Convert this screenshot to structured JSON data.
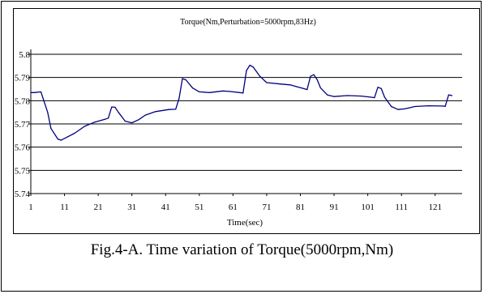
{
  "caption": "Fig.4-A. Time variation of Torque(5000rpm,Nm)",
  "chart_data": {
    "type": "line",
    "title": "Torque(Nm,Perturbation=5000rpm,83Hz)",
    "xlabel": "Time(sec)",
    "ylabel": "",
    "x_ticks": [
      1,
      11,
      21,
      31,
      41,
      51,
      61,
      71,
      81,
      91,
      101,
      111,
      121
    ],
    "y_ticks": [
      5.74,
      5.75,
      5.76,
      5.77,
      5.78,
      5.79,
      5.8
    ],
    "xlim": [
      1,
      129
    ],
    "ylim": [
      5.74,
      5.8
    ],
    "grid": "horizontal",
    "line_color": "#000080",
    "series": [
      {
        "x": [
          1,
          2,
          4,
          6,
          7,
          9,
          10,
          12,
          14,
          17,
          20,
          23,
          24,
          25,
          26,
          27,
          29,
          31,
          33,
          35,
          38,
          42,
          44,
          45,
          46,
          47,
          49,
          51,
          54,
          58,
          60,
          63,
          64,
          65,
          66,
          67,
          69,
          71,
          75,
          78,
          80,
          82,
          83,
          84,
          85,
          86,
          87,
          89,
          91,
          95,
          99,
          102,
          103,
          104,
          105,
          106,
          108,
          110,
          112,
          115,
          119,
          123,
          124,
          125,
          126
        ],
        "y": [
          5.7835,
          5.7835,
          5.7838,
          5.775,
          5.768,
          5.7635,
          5.763,
          5.7645,
          5.766,
          5.769,
          5.7708,
          5.772,
          5.7725,
          5.7773,
          5.7772,
          5.775,
          5.7712,
          5.7705,
          5.7718,
          5.7738,
          5.7753,
          5.7762,
          5.7763,
          5.781,
          5.7895,
          5.789,
          5.7855,
          5.7838,
          5.7835,
          5.7842,
          5.784,
          5.7835,
          5.7833,
          5.793,
          5.7953,
          5.7945,
          5.7905,
          5.7878,
          5.7872,
          5.7868,
          5.786,
          5.7852,
          5.7848,
          5.7905,
          5.7912,
          5.789,
          5.7855,
          5.7825,
          5.7818,
          5.7822,
          5.782,
          5.7815,
          5.7813,
          5.7858,
          5.7852,
          5.7815,
          5.7775,
          5.7762,
          5.7765,
          5.7775,
          5.7778,
          5.7777,
          5.7776,
          5.7825,
          5.7822
        ]
      }
    ]
  }
}
